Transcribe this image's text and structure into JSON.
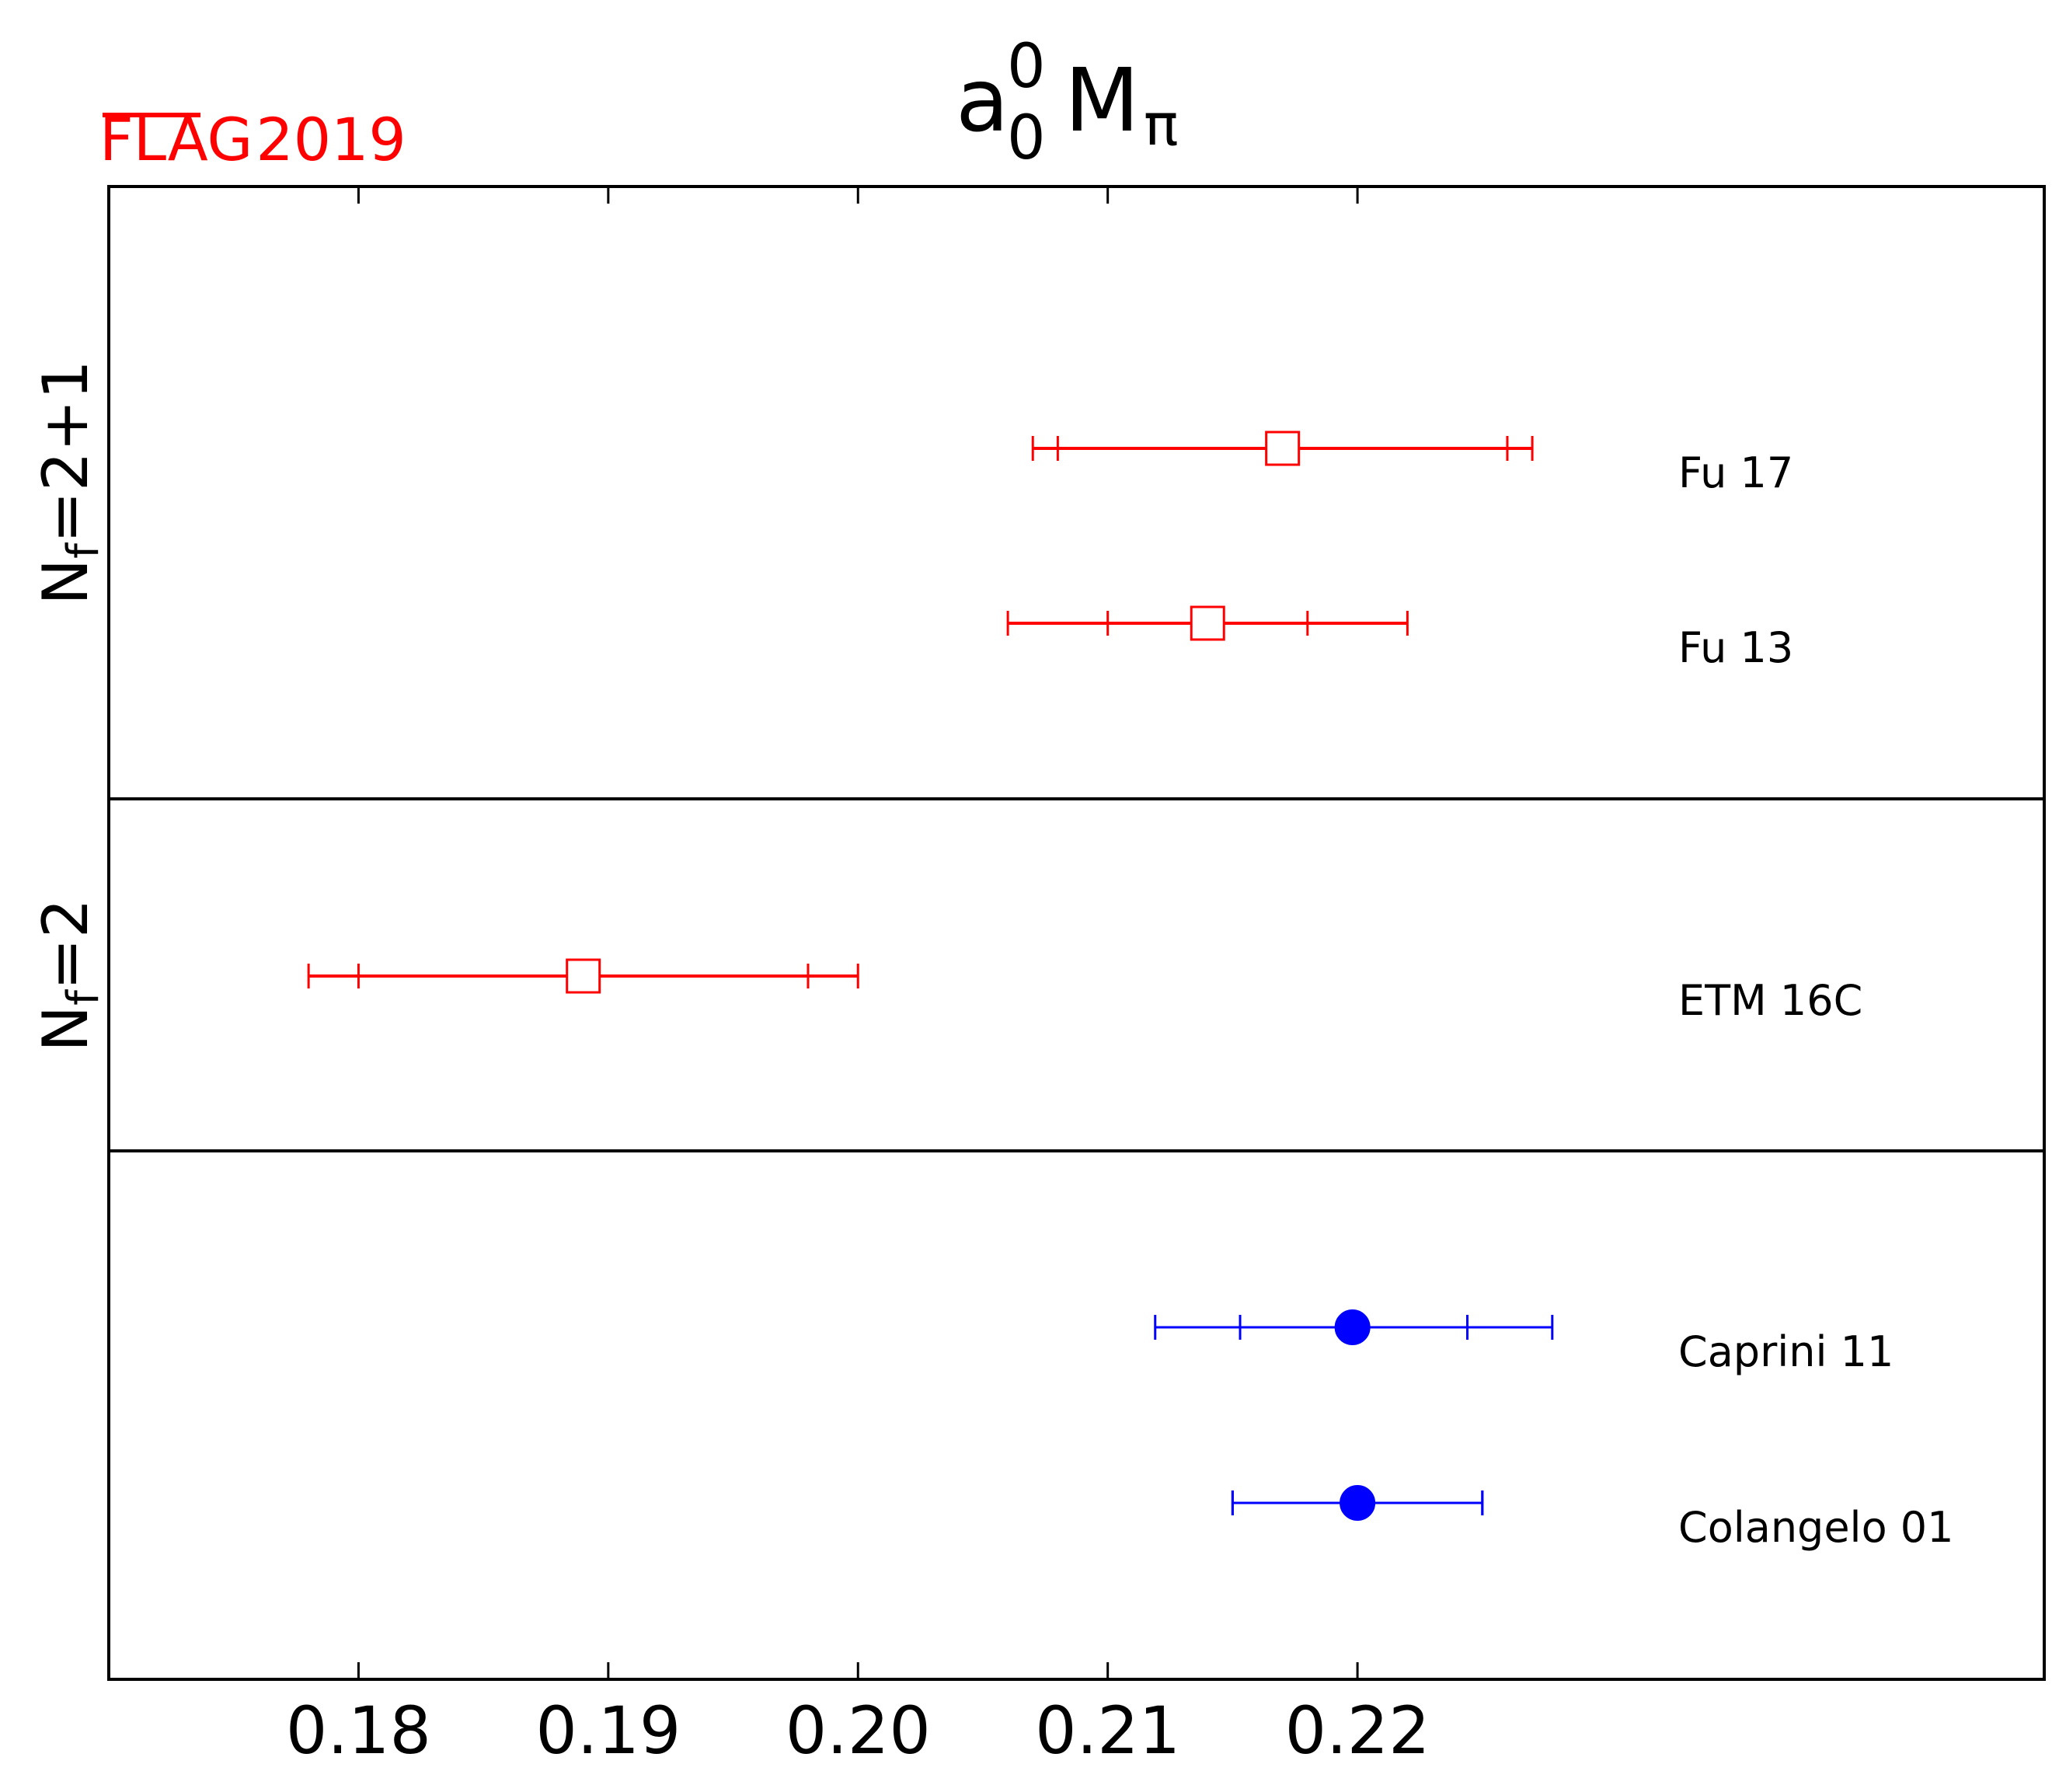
{
  "brand": {
    "flag": "FLAG",
    "year": "2019",
    "color": "#ff0000"
  },
  "chart_data": {
    "type": "scatter",
    "subtype": "forest-plot-with-error-bars",
    "title": {
      "base": "a",
      "sup": "0",
      "sub": "0",
      "suffix": "M",
      "suffix_sub": "π"
    },
    "xlabel": "",
    "ylabel": "",
    "xlim": [
      0.17,
      0.2475
    ],
    "xticks": [
      0.18,
      0.19,
      0.2,
      0.21,
      0.22
    ],
    "xtick_labels": [
      "0.18",
      "0.19",
      "0.20",
      "0.21",
      "0.22"
    ],
    "grid": false,
    "legend": "none",
    "groups": [
      {
        "label": "N",
        "label_sub": "f",
        "label_tail": "=2+1",
        "rows": [
          0,
          1
        ]
      },
      {
        "label": "N",
        "label_sub": "f",
        "label_tail": "=2",
        "rows": [
          2
        ]
      },
      {
        "label": "",
        "rows": [
          3,
          4
        ]
      }
    ],
    "series": [
      {
        "name": "Fu 17",
        "value": 0.217,
        "stat_low": 0.208,
        "stat_high": 0.226,
        "total_low": 0.207,
        "total_high": 0.227,
        "marker": "open-square",
        "color": "#ff0000"
      },
      {
        "name": "Fu 13",
        "value": 0.214,
        "stat_low": 0.21,
        "stat_high": 0.218,
        "total_low": 0.206,
        "total_high": 0.222,
        "marker": "open-square",
        "color": "#ff0000"
      },
      {
        "name": "ETM 16C",
        "value": 0.189,
        "stat_low": 0.18,
        "stat_high": 0.198,
        "total_low": 0.178,
        "total_high": 0.2,
        "marker": "open-square",
        "color": "#ff0000"
      },
      {
        "name": "Caprini 11",
        "value": 0.2198,
        "stat_low": 0.2153,
        "stat_high": 0.2244,
        "total_low": 0.2119,
        "total_high": 0.2278,
        "marker": "filled-circle",
        "color": "#0000ff"
      },
      {
        "name": "Colangelo 01",
        "value": 0.22,
        "stat_low": 0.215,
        "stat_high": 0.225,
        "total_low": 0.215,
        "total_high": 0.225,
        "marker": "filled-circle",
        "color": "#0000ff"
      }
    ]
  }
}
